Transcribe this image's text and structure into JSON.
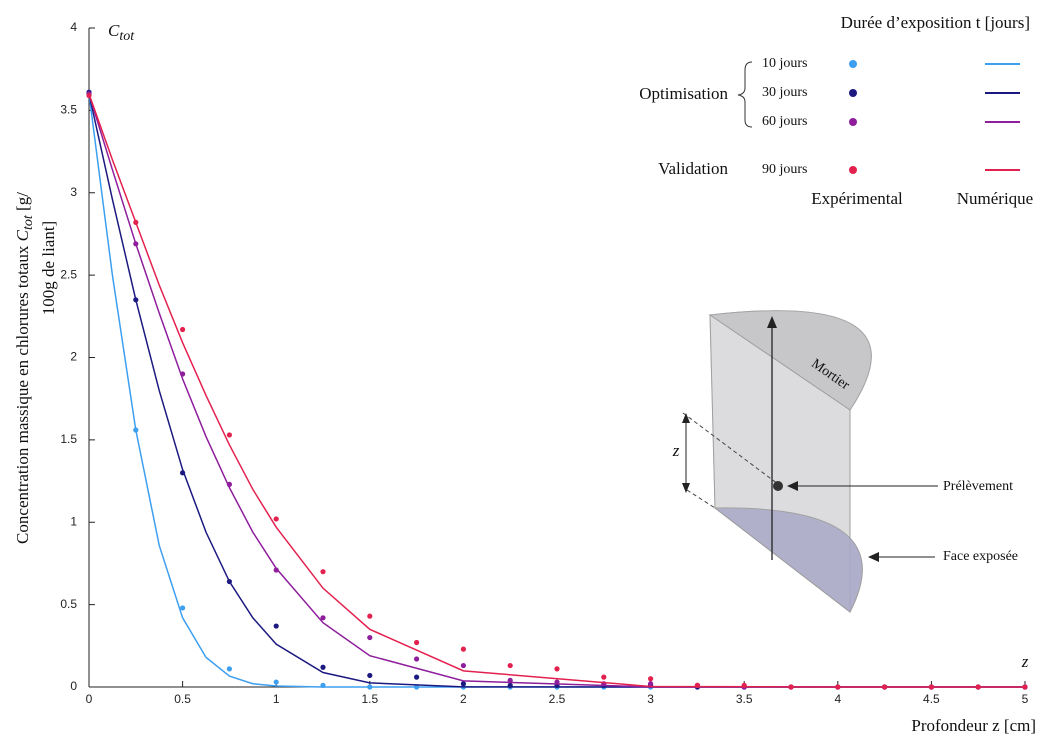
{
  "chart_data": {
    "type": "scatter-line",
    "corner_label": {
      "symbol": "C",
      "subscript": "tot"
    },
    "x_corner_label": "z",
    "xlabel": "Profondeur z [cm]",
    "y_label": {
      "text": "Concentration massique en chlorures totaux",
      "symbol": "C",
      "subscript": "tot",
      "unit": "[g/",
      "line2": "100g de liant]"
    },
    "legend_title": "Durée d’exposition t [jours]",
    "legend_groups": [
      "Optimisation",
      "Validation"
    ],
    "legend_columns": [
      "Expérimental",
      "Numérique"
    ],
    "x": [
      0,
      0.25,
      0.5,
      0.75,
      1,
      1.25,
      1.5,
      1.75,
      2,
      2.25,
      2.5,
      2.75,
      3,
      3.25,
      3.5,
      3.75,
      4,
      4.25,
      4.5,
      4.75,
      5
    ],
    "line_x": [
      0,
      0.125,
      0.25,
      0.375,
      0.5,
      0.625,
      0.75,
      0.875,
      1,
      1.25,
      1.5,
      2,
      3,
      4,
      5
    ],
    "series": [
      {
        "name": "10 jours",
        "color": "#3d9ff0",
        "values": [
          3.6,
          1.56,
          0.48,
          0.11,
          0.03,
          0.01,
          0,
          0,
          0,
          0,
          0,
          0,
          0,
          0,
          0,
          0,
          0,
          0,
          0,
          0,
          0
        ],
        "line_values": [
          3.6,
          2.5,
          1.56,
          0.86,
          0.42,
          0.18,
          0.066,
          0.02,
          0.006,
          0,
          0,
          0,
          0,
          0,
          0
        ]
      },
      {
        "name": "30 jours",
        "color": "#1c1a80",
        "values": [
          3.61,
          2.35,
          1.3,
          0.64,
          0.37,
          0.12,
          0.07,
          0.06,
          0.02,
          0.01,
          0.01,
          0.01,
          0.01,
          0,
          0,
          0,
          0,
          0,
          0,
          0,
          0
        ],
        "line_values": [
          3.6,
          2.96,
          2.35,
          1.8,
          1.32,
          0.94,
          0.64,
          0.42,
          0.26,
          0.088,
          0.025,
          0.001,
          0,
          0,
          0
        ]
      },
      {
        "name": "60 jours",
        "color": "#8e1e9c",
        "values": [
          3.6,
          2.69,
          1.9,
          1.23,
          0.71,
          0.42,
          0.3,
          0.17,
          0.13,
          0.04,
          0.03,
          0.02,
          0.02,
          0.01,
          0,
          0,
          0,
          0,
          0,
          0,
          0
        ],
        "line_values": [
          3.6,
          3.14,
          2.69,
          2.27,
          1.87,
          1.52,
          1.21,
          0.94,
          0.72,
          0.39,
          0.19,
          0.037,
          0,
          0,
          0
        ]
      },
      {
        "name": "90 jours",
        "color": "#e3214e",
        "values": [
          3.59,
          2.82,
          2.17,
          1.53,
          1.02,
          0.7,
          0.43,
          0.27,
          0.23,
          0.13,
          0.11,
          0.06,
          0.05,
          0.01,
          0.01,
          0,
          0,
          0,
          0,
          0,
          0
        ],
        "line_values": [
          3.6,
          3.2,
          2.82,
          2.44,
          2.09,
          1.77,
          1.47,
          1.2,
          0.97,
          0.6,
          0.35,
          0.098,
          0.003,
          0,
          0
        ]
      }
    ],
    "xlim": [
      0,
      5
    ],
    "xticks": [
      0,
      0.5,
      1,
      1.5,
      2,
      2.5,
      3,
      3.5,
      4,
      4.5,
      5
    ],
    "ylim": [
      0,
      4
    ],
    "yticks": [
      0,
      0.5,
      1,
      1.5,
      2,
      2.5,
      3,
      3.5,
      4
    ],
    "inset": {
      "material": "Mortier",
      "depth": "z",
      "sample": "Prélèvement",
      "face": "Face exposée"
    }
  }
}
